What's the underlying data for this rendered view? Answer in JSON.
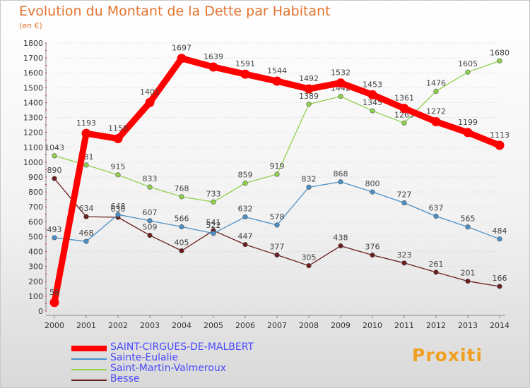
{
  "header": {
    "title": "Evolution du Montant de la Dette par Habitant",
    "subtitle": "(en €)"
  },
  "brand": {
    "logo_text": "Proxiti"
  },
  "chart_data": {
    "type": "line",
    "x": [
      2000,
      2001,
      2002,
      2003,
      2004,
      2005,
      2006,
      2007,
      2008,
      2009,
      2010,
      2011,
      2012,
      2013,
      2014
    ],
    "ylim": [
      0,
      1800
    ],
    "ytick_step": 100,
    "grid": "horizontal dotted",
    "legend_position": "bottom-left",
    "series": [
      {
        "name": "SAINT-CIRGUES-DE-MALBERT",
        "color": "#ff0000",
        "emphasis": true,
        "values": [
          58,
          1193,
          1158,
          1401,
          1697,
          1639,
          1591,
          1544,
          1492,
          1532,
          1453,
          1361,
          1272,
          1199,
          1113
        ]
      },
      {
        "name": "Sainte-Eulalie",
        "color": "#4a90c8",
        "values": [
          493,
          468,
          648,
          607,
          566,
          522,
          632,
          578,
          832,
          868,
          800,
          727,
          637,
          565,
          484
        ]
      },
      {
        "name": "Saint-Martin-Valmeroux",
        "color": "#8ed14b",
        "values": [
          1043,
          981,
          915,
          833,
          768,
          733,
          859,
          919,
          1389,
          1442,
          1345,
          1263,
          1476,
          1605,
          1680
        ]
      },
      {
        "name": "Besse",
        "color": "#6b1e1e",
        "values": [
          890,
          634,
          630,
          509,
          405,
          541,
          447,
          377,
          305,
          438,
          376,
          323,
          261,
          201,
          166
        ]
      }
    ]
  }
}
